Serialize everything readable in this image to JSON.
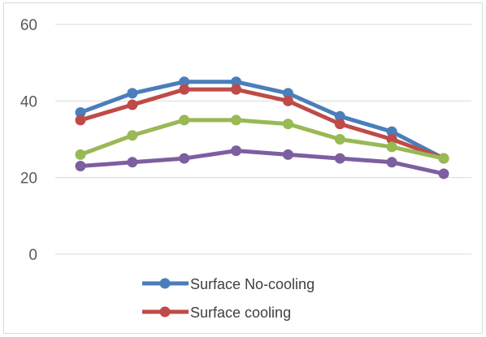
{
  "chart_data": {
    "type": "line",
    "title": "",
    "xlabel": "",
    "ylabel": "",
    "ylim": [
      0,
      60
    ],
    "yticks": [
      0,
      20,
      40,
      60
    ],
    "grid": true,
    "legend": "bottom-center",
    "x": [
      1,
      2,
      3,
      4,
      5,
      6,
      7,
      8
    ],
    "series": [
      {
        "name": "Surface No-cooling",
        "color": "#4a7ebb",
        "values": [
          37,
          42,
          45,
          45,
          42,
          36,
          32,
          25
        ]
      },
      {
        "name": "Surface cooling",
        "color": "#be4b48",
        "values": [
          35,
          39,
          43,
          43,
          40,
          34,
          30,
          25
        ]
      },
      {
        "color": "#98b954",
        "values": [
          26,
          31,
          35,
          35,
          34,
          30,
          28,
          25
        ]
      },
      {
        "color": "#7d5fa0",
        "values": [
          23,
          24,
          25,
          27,
          26,
          25,
          24,
          21
        ]
      }
    ]
  }
}
